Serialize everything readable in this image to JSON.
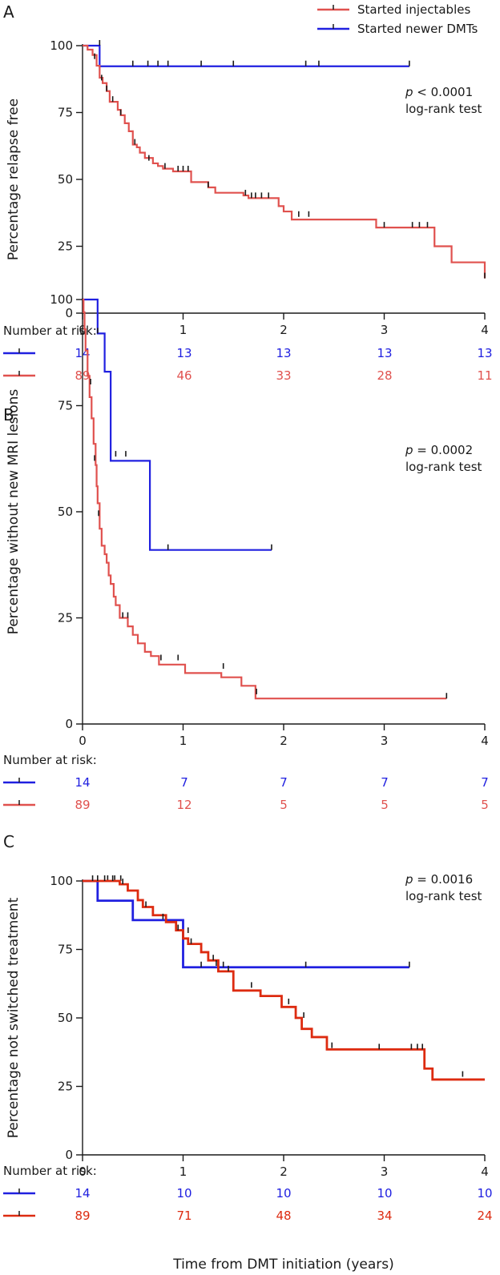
{
  "figure": {
    "x_label": "Time from DMT initiation (years)",
    "legend": [
      {
        "name": "Started injectables",
        "color": "#e0514e"
      },
      {
        "name": "Started newer DMTs",
        "color": "#2020e0"
      }
    ],
    "colors": {
      "injectables": "#e0514e",
      "newer": "#2020e0",
      "axis": "#1a1a1a",
      "censor": "#1a1a1a"
    }
  },
  "chart_data": [
    {
      "type": "line",
      "panel": "A",
      "ylabel": "Percentage relapse free",
      "xlim": [
        0,
        4
      ],
      "ylim": [
        0,
        100
      ],
      "x_ticks": [
        0,
        1,
        2,
        3,
        4
      ],
      "y_ticks": [
        0,
        25,
        50,
        75,
        100
      ],
      "annotation": {
        "p_symbol": "p",
        "p_value": " < 0.0001",
        "test": "log-rank test"
      },
      "risk_header": "Number at risk:",
      "series": [
        {
          "name": "Started newer DMTs",
          "color": "#2020e0",
          "steps": [
            [
              0,
              100
            ],
            [
              0.17,
              92.3
            ],
            [
              3.25,
              92.3
            ]
          ],
          "censors": [
            [
              0.17,
              100
            ],
            [
              0.5,
              92.3
            ],
            [
              0.65,
              92.3
            ],
            [
              0.75,
              92.3
            ],
            [
              0.85,
              92.3
            ],
            [
              1.18,
              92.3
            ],
            [
              1.5,
              92.3
            ],
            [
              2.22,
              92.3
            ],
            [
              2.35,
              92.3
            ],
            [
              3.25,
              92.3
            ]
          ],
          "at_risk": [
            14,
            13,
            13,
            13,
            13
          ]
        },
        {
          "name": "Started injectables",
          "color": "#e0514e",
          "steps": [
            [
              0,
              100
            ],
            [
              0.05,
              98.5
            ],
            [
              0.1,
              96.5
            ],
            [
              0.14,
              92.5
            ],
            [
              0.17,
              88
            ],
            [
              0.2,
              86
            ],
            [
              0.24,
              83
            ],
            [
              0.27,
              79
            ],
            [
              0.35,
              76
            ],
            [
              0.38,
              74
            ],
            [
              0.42,
              71
            ],
            [
              0.46,
              68
            ],
            [
              0.5,
              63
            ],
            [
              0.54,
              62
            ],
            [
              0.57,
              60
            ],
            [
              0.62,
              58
            ],
            [
              0.7,
              56
            ],
            [
              0.75,
              55
            ],
            [
              0.8,
              54
            ],
            [
              0.9,
              53
            ],
            [
              1.08,
              49
            ],
            [
              1.25,
              47
            ],
            [
              1.32,
              45
            ],
            [
              1.6,
              44
            ],
            [
              1.65,
              43
            ],
            [
              1.95,
              40
            ],
            [
              2.0,
              38
            ],
            [
              2.08,
              35
            ],
            [
              2.92,
              32
            ],
            [
              3.5,
              25
            ],
            [
              3.67,
              19
            ],
            [
              4.0,
              13
            ]
          ],
          "censors": [
            [
              0.12,
              95
            ],
            [
              0.19,
              87
            ],
            [
              0.24,
              83
            ],
            [
              0.3,
              79
            ],
            [
              0.38,
              74
            ],
            [
              0.52,
              63
            ],
            [
              0.66,
              57
            ],
            [
              0.82,
              54
            ],
            [
              0.95,
              53
            ],
            [
              1.0,
              53
            ],
            [
              1.05,
              53
            ],
            [
              1.25,
              47
            ],
            [
              1.62,
              44
            ],
            [
              1.68,
              43
            ],
            [
              1.72,
              43
            ],
            [
              1.78,
              43
            ],
            [
              1.85,
              43
            ],
            [
              2.15,
              36
            ],
            [
              2.25,
              36
            ],
            [
              3.0,
              32
            ],
            [
              3.28,
              32
            ],
            [
              3.35,
              32
            ],
            [
              3.43,
              32
            ],
            [
              4.0,
              13
            ]
          ],
          "at_risk": [
            89,
            46,
            33,
            28,
            11
          ]
        }
      ]
    },
    {
      "type": "line",
      "panel": "B",
      "ylabel": "Percentage without new MRI lesions",
      "xlim": [
        0,
        4
      ],
      "ylim": [
        0,
        100
      ],
      "x_ticks": [
        0,
        1,
        2,
        3,
        4
      ],
      "y_ticks": [
        0,
        25,
        50,
        75,
        100
      ],
      "annotation": {
        "p_symbol": "p",
        "p_value": " = 0.0002",
        "test": "log-rank test"
      },
      "risk_header": "Number at risk:",
      "series": [
        {
          "name": "Started newer DMTs",
          "color": "#2020e0",
          "steps": [
            [
              0,
              100
            ],
            [
              0.15,
              92
            ],
            [
              0.22,
              83
            ],
            [
              0.28,
              62
            ],
            [
              0.67,
              41
            ],
            [
              1.88,
              41
            ]
          ],
          "censors": [
            [
              0.15,
              92
            ],
            [
              0.33,
              63
            ],
            [
              0.43,
              63
            ],
            [
              0.85,
              41
            ],
            [
              1.88,
              41
            ]
          ],
          "at_risk": [
            14,
            7,
            7,
            7,
            7
          ]
        },
        {
          "name": "Started injectables",
          "color": "#e0514e",
          "steps": [
            [
              0,
              100
            ],
            [
              0.01,
              97
            ],
            [
              0.02,
              93
            ],
            [
              0.03,
              88
            ],
            [
              0.05,
              82
            ],
            [
              0.07,
              77
            ],
            [
              0.09,
              72
            ],
            [
              0.11,
              66
            ],
            [
              0.13,
              61
            ],
            [
              0.14,
              56
            ],
            [
              0.15,
              52
            ],
            [
              0.17,
              46
            ],
            [
              0.19,
              42
            ],
            [
              0.22,
              40
            ],
            [
              0.24,
              38
            ],
            [
              0.26,
              35
            ],
            [
              0.28,
              33
            ],
            [
              0.31,
              30
            ],
            [
              0.33,
              28
            ],
            [
              0.37,
              25
            ],
            [
              0.45,
              23
            ],
            [
              0.5,
              21
            ],
            [
              0.55,
              19
            ],
            [
              0.62,
              17
            ],
            [
              0.68,
              16
            ],
            [
              0.76,
              14
            ],
            [
              1.02,
              12
            ],
            [
              1.38,
              11
            ],
            [
              1.58,
              9
            ],
            [
              1.72,
              6
            ],
            [
              3.62,
              6
            ]
          ],
          "censors": [
            [
              0.08,
              80
            ],
            [
              0.12,
              62
            ],
            [
              0.16,
              49
            ],
            [
              0.4,
              25
            ],
            [
              0.45,
              25
            ],
            [
              0.78,
              15
            ],
            [
              0.95,
              15
            ],
            [
              1.4,
              13
            ],
            [
              1.73,
              7
            ],
            [
              3.62,
              6
            ]
          ],
          "at_risk": [
            89,
            12,
            5,
            5,
            5
          ]
        }
      ]
    },
    {
      "type": "line",
      "panel": "C",
      "ylabel": "Percentage not switched treatment",
      "xlim": [
        0,
        4
      ],
      "ylim": [
        0,
        100
      ],
      "x_ticks": [
        0,
        1,
        2,
        3,
        4
      ],
      "y_ticks": [
        0,
        25,
        50,
        75,
        100
      ],
      "annotation": {
        "p_symbol": "p",
        "p_value": " = 0.0016",
        "test": "log-rank test"
      },
      "risk_header": "Number at risk:",
      "series": [
        {
          "name": "Started newer DMTs",
          "color": "#2020e0",
          "steps": [
            [
              0,
              100
            ],
            [
              0.15,
              92.8
            ],
            [
              0.5,
              85.7
            ],
            [
              1.0,
              68.5
            ],
            [
              3.25,
              68.5
            ]
          ],
          "censors": [
            [
              0.25,
              100
            ],
            [
              0.32,
              100
            ],
            [
              0.38,
              100
            ],
            [
              1.18,
              68.5
            ],
            [
              1.4,
              68.5
            ],
            [
              2.22,
              68.5
            ],
            [
              3.25,
              68.5
            ]
          ],
          "at_risk": [
            14,
            10,
            10,
            10,
            10
          ]
        },
        {
          "name": "Started injectables",
          "color": "#dd2b10",
          "steps": [
            [
              0,
              100
            ],
            [
              0.37,
              98.8
            ],
            [
              0.45,
              96.5
            ],
            [
              0.55,
              93
            ],
            [
              0.6,
              90.5
            ],
            [
              0.7,
              87.5
            ],
            [
              0.83,
              85
            ],
            [
              0.93,
              82
            ],
            [
              1.0,
              79
            ],
            [
              1.05,
              77
            ],
            [
              1.18,
              74
            ],
            [
              1.25,
              71
            ],
            [
              1.35,
              67
            ],
            [
              1.5,
              60
            ],
            [
              1.77,
              58
            ],
            [
              1.98,
              54
            ],
            [
              2.12,
              50
            ],
            [
              2.18,
              46
            ],
            [
              2.28,
              43
            ],
            [
              2.43,
              38.5
            ],
            [
              3.4,
              31.5
            ],
            [
              3.48,
              27.5
            ],
            [
              4.0,
              27.5
            ]
          ],
          "censors": [
            [
              0.1,
              100
            ],
            [
              0.15,
              100
            ],
            [
              0.22,
              100
            ],
            [
              0.3,
              100
            ],
            [
              0.4,
              98.8
            ],
            [
              0.63,
              90.5
            ],
            [
              0.8,
              86
            ],
            [
              0.95,
              82
            ],
            [
              1.05,
              81
            ],
            [
              1.08,
              77
            ],
            [
              1.3,
              71
            ],
            [
              1.33,
              69
            ],
            [
              1.45,
              67
            ],
            [
              1.68,
              61
            ],
            [
              2.05,
              55
            ],
            [
              2.2,
              50
            ],
            [
              2.48,
              39
            ],
            [
              2.95,
              38.5
            ],
            [
              3.27,
              38.5
            ],
            [
              3.33,
              38.5
            ],
            [
              3.38,
              38.5
            ],
            [
              3.78,
              28.5
            ]
          ],
          "at_risk": [
            89,
            71,
            48,
            34,
            24
          ]
        }
      ]
    }
  ]
}
